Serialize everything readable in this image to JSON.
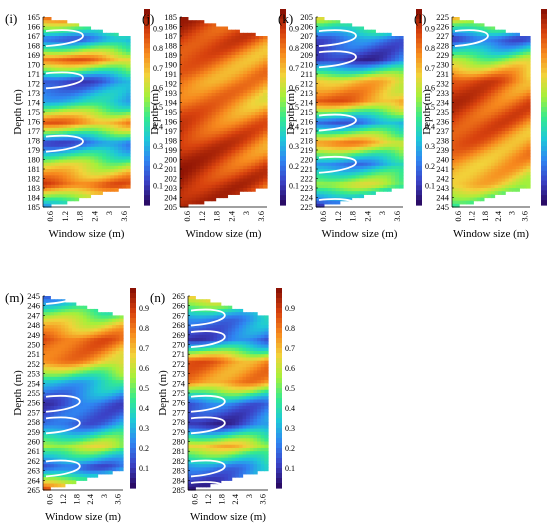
{
  "figure": {
    "colormap": [
      "#2a0b66",
      "#3b43c8",
      "#2f86f2",
      "#1ec8d8",
      "#35ea8e",
      "#a6f03a",
      "#f2d23a",
      "#f78a1e",
      "#d8420e",
      "#8c1204"
    ],
    "contour_color": "#ffffff",
    "colorbar_ticks": [
      "0.1",
      "0.2",
      "0.3",
      "0.4",
      "0.5",
      "0.6",
      "0.7",
      "0.8",
      "0.9"
    ],
    "xticks": [
      "0.6",
      "1.2",
      "1.8",
      "2.4",
      "3",
      "3.6"
    ]
  },
  "chart_data": [
    {
      "type": "heatmap",
      "panel": "(i)",
      "xlabel": "Window size (m)",
      "ylabel": "Depth (m)",
      "ylim": [
        165,
        185
      ],
      "xlim": [
        0.6,
        3.6
      ],
      "yticks": [
        "165",
        "166",
        "167",
        "168",
        "169",
        "170",
        "171",
        "172",
        "173",
        "174",
        "175",
        "176",
        "177",
        "178",
        "179",
        "180",
        "181",
        "182",
        "183",
        "184",
        "185"
      ],
      "profile": [
        0.8,
        0.15,
        0.85,
        0.1,
        0.3,
        0.85,
        0.1,
        0.6,
        0.9,
        0.3
      ],
      "phase": 0
    },
    {
      "type": "heatmap",
      "panel": "(j)",
      "xlabel": "Window size (m)",
      "ylabel": "Depth (m)",
      "ylim": [
        185,
        205
      ],
      "xlim": [
        0.6,
        3.6
      ],
      "yticks": [
        "185",
        "186",
        "187",
        "188",
        "189",
        "190",
        "191",
        "192",
        "193",
        "194",
        "195",
        "196",
        "197",
        "198",
        "199",
        "200",
        "201",
        "202",
        "203",
        "204",
        "205"
      ],
      "profile": [
        0.95,
        0.92,
        0.85,
        0.8,
        0.82,
        0.88,
        0.93,
        0.95,
        0.97,
        0.95
      ],
      "phase": 1
    },
    {
      "type": "heatmap",
      "panel": "(k)",
      "xlabel": "Window size (m)",
      "ylabel": "Depth (m)",
      "ylim": [
        205,
        225
      ],
      "xlim": [
        0.6,
        3.6
      ],
      "yticks": [
        "205",
        "206",
        "207",
        "208",
        "209",
        "210",
        "211",
        "212",
        "213",
        "214",
        "215",
        "216",
        "217",
        "218",
        "219",
        "220",
        "221",
        "222",
        "223",
        "224",
        "225"
      ],
      "profile": [
        0.6,
        0.15,
        0.05,
        0.7,
        0.85,
        0.15,
        0.8,
        0.2,
        0.6,
        0.05
      ],
      "phase": 2
    },
    {
      "type": "heatmap",
      "panel": "(l)",
      "xlabel": "Window size (m)",
      "ylabel": "Depth (m)",
      "ylim": [
        225,
        245
      ],
      "xlim": [
        0.6,
        3.6
      ],
      "yticks": [
        "225",
        "226",
        "227",
        "228",
        "229",
        "230",
        "231",
        "232",
        "233",
        "234",
        "235",
        "236",
        "237",
        "238",
        "239",
        "240",
        "241",
        "242",
        "243",
        "244",
        "245"
      ],
      "profile": [
        0.7,
        0.1,
        0.55,
        0.9,
        0.92,
        0.9,
        0.85,
        0.75,
        0.7,
        0.4
      ],
      "phase": 3
    },
    {
      "type": "heatmap",
      "panel": "(m)",
      "xlabel": "Window size (m)",
      "ylabel": "Depth (m)",
      "ylim": [
        245,
        265
      ],
      "xlim": [
        0.6,
        3.6
      ],
      "yticks": [
        "245",
        "246",
        "247",
        "248",
        "249",
        "250",
        "251",
        "252",
        "253",
        "254",
        "255",
        "256",
        "257",
        "258",
        "259",
        "260",
        "261",
        "262",
        "263",
        "264",
        "265"
      ],
      "profile": [
        0.2,
        0.6,
        0.88,
        0.8,
        0.3,
        0.1,
        0.15,
        0.6,
        0.1,
        0.85
      ],
      "phase": 4
    },
    {
      "type": "heatmap",
      "panel": "(n)",
      "xlabel": "Window size (m)",
      "ylabel": "Depth (m)",
      "ylim": [
        265,
        285
      ],
      "xlim": [
        0.6,
        3.6
      ],
      "yticks": [
        "265",
        "266",
        "267",
        "268",
        "269",
        "270",
        "271",
        "272",
        "273",
        "274",
        "275",
        "276",
        "277",
        "278",
        "279",
        "280",
        "281",
        "282",
        "283",
        "284",
        "285"
      ],
      "profile": [
        0.7,
        0.2,
        0.1,
        0.85,
        0.8,
        0.15,
        0.05,
        0.7,
        0.2,
        0.05
      ],
      "phase": 5
    }
  ]
}
